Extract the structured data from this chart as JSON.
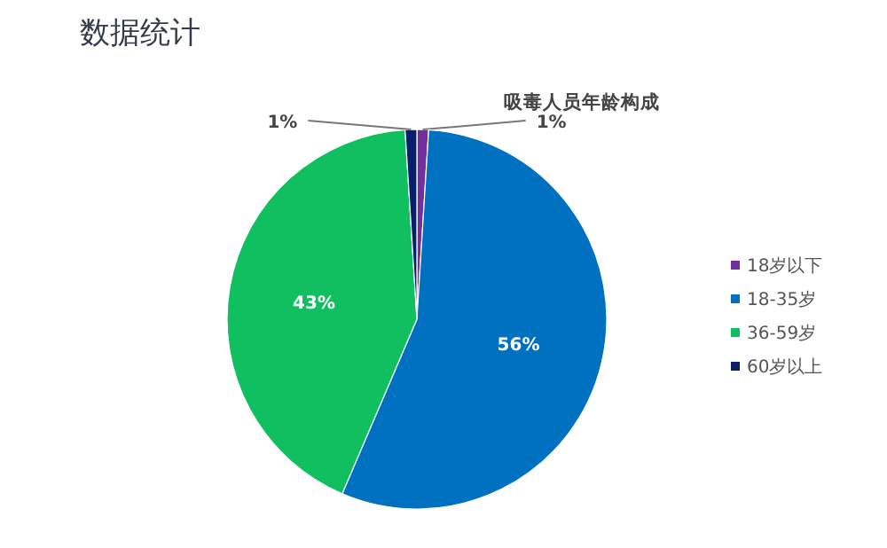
{
  "chart_data": {
    "type": "pie",
    "title": "数据统计",
    "subtitle": "吸毒人员年龄构成",
    "categories": [
      "18岁以下",
      "18-35岁",
      "36-59岁",
      "60岁以上"
    ],
    "values": [
      1,
      56,
      43,
      1
    ],
    "colors": [
      "#7030a0",
      "#0070c0",
      "#10c060",
      "#0a1f6a"
    ],
    "value_labels": [
      "1%",
      "56%",
      "43%",
      "1%"
    ],
    "legend": "right"
  }
}
